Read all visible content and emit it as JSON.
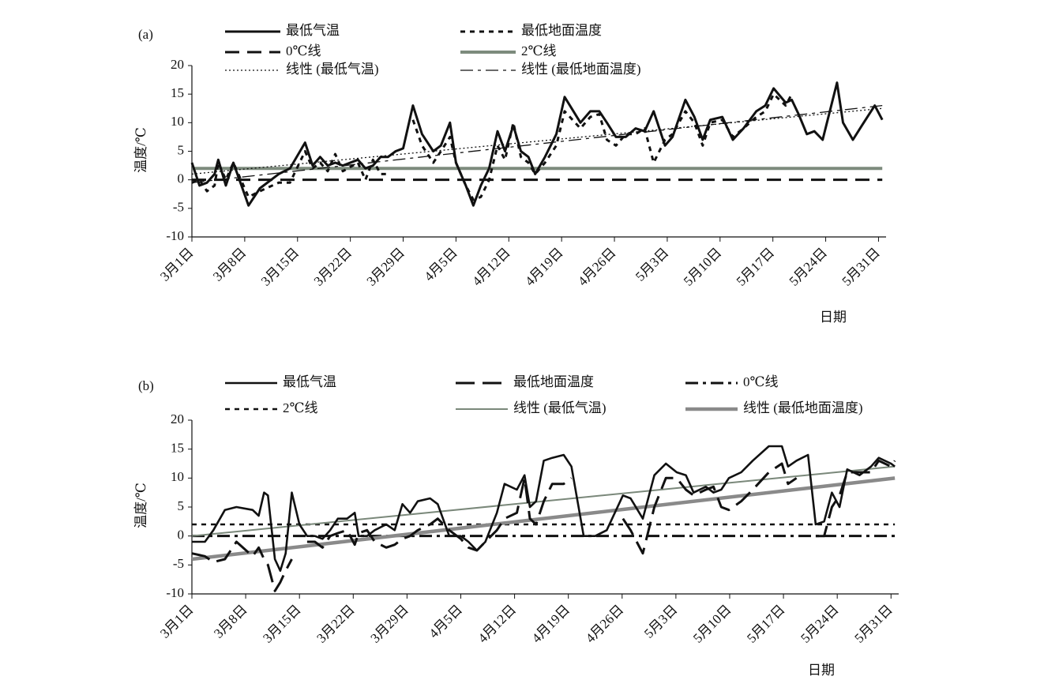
{
  "chart_data": [
    {
      "type": "line",
      "label": "(a)",
      "ylabel": "温度/℃",
      "xlabel": "日期",
      "xlim": [
        0,
        92
      ],
      "ylim": [
        -10,
        20
      ],
      "yticks": [
        -10,
        -5,
        0,
        5,
        10,
        15,
        20
      ],
      "xticks": [
        {
          "value": 0,
          "label": "3月1日"
        },
        {
          "value": 7,
          "label": "3月8日"
        },
        {
          "value": 14,
          "label": "3月15日"
        },
        {
          "value": 21,
          "label": "3月22日"
        },
        {
          "value": 28,
          "label": "3月29日"
        },
        {
          "value": 35,
          "label": "4月5日"
        },
        {
          "value": 42,
          "label": "4月12日"
        },
        {
          "value": 49,
          "label": "4月19日"
        },
        {
          "value": 56,
          "label": "4月26日"
        },
        {
          "value": 63,
          "label": "5月3日"
        },
        {
          "value": 70,
          "label": "5月10日"
        },
        {
          "value": 77,
          "label": "5月17日"
        },
        {
          "value": 84,
          "label": "5月24日"
        },
        {
          "value": 91,
          "label": "5月31日"
        }
      ],
      "x": [
        0,
        1,
        2,
        3,
        3.5,
        4.5,
        5.5,
        7.5,
        9,
        11.5,
        13,
        15,
        16,
        17,
        18,
        19,
        20,
        22,
        23,
        24,
        25,
        26,
        27,
        28,
        29.3,
        30.5,
        32,
        33,
        34.2,
        35,
        36.3,
        37.3,
        38.3,
        39.4,
        40.5,
        41.5,
        42.6,
        43.6,
        44.6,
        45.5,
        46.8,
        48.3,
        49.4,
        51.5,
        52.8,
        54,
        55,
        56.2,
        57.5,
        58.8,
        60,
        61.2,
        62.7,
        63.7,
        65.4,
        66.6,
        67.7,
        68.7,
        70.3,
        71.7,
        73.1,
        74.8,
        76,
        77.1,
        78.7,
        79.5,
        80.4,
        81.5,
        82.5,
        83.6,
        85.5,
        86.3,
        87.6,
        88.8,
        90.5,
        91.5
      ],
      "series": [
        {
          "name": "最低气温",
          "color": "#111111",
          "style": "solid",
          "width": 3,
          "values": [
            3,
            -1,
            -0.5,
            1,
            3.5,
            -1,
            3,
            -4.5,
            -1.5,
            1,
            2,
            6.5,
            2.5,
            4,
            2.5,
            3,
            2.5,
            3.5,
            2,
            2.5,
            4,
            4,
            5,
            5.5,
            13,
            8,
            5,
            6,
            10,
            3,
            -1,
            -4.5,
            -1,
            2,
            8.5,
            5,
            9.5,
            5,
            4,
            1,
            4,
            8,
            14.5,
            10,
            12,
            12,
            10,
            7.5,
            7.5,
            9,
            8.5,
            12,
            6,
            7.5,
            14,
            11,
            7,
            10.5,
            11,
            7,
            9,
            12,
            13,
            16,
            13.5,
            14,
            11.5,
            8,
            8.5,
            7,
            17,
            10,
            7,
            9.5,
            13,
            10.5
          ]
        },
        {
          "name": "最低地面温度",
          "color": "#111111",
          "style": "squaredot",
          "width": 3,
          "values": [
            -0.5,
            0,
            -2,
            -1,
            3,
            0,
            3,
            -3,
            -2,
            -0.5,
            -0.5,
            5,
            2,
            3,
            1.5,
            4.5,
            1.5,
            3,
            0,
            3.5,
            1,
            1,
            null,
            null,
            10.5,
            6,
            3,
            5,
            7.5,
            3,
            -1,
            -3.5,
            -3,
            0,
            6,
            3.5,
            10,
            4,
            3,
            1,
            3,
            6,
            12,
            9,
            11,
            11.5,
            7,
            6,
            8,
            8,
            9,
            3,
            7,
            8,
            12,
            10,
            6,
            10,
            10.5,
            7.5,
            9,
            11,
            12,
            15,
            13,
            15,
            null,
            null,
            null,
            null,
            null,
            null,
            null,
            null,
            null,
            null
          ]
        }
      ],
      "hlines": [
        {
          "name": "0℃线",
          "value": 0,
          "color": "#111111",
          "style": "dashed",
          "width": 3
        },
        {
          "name": "2℃线",
          "value": 2,
          "color": "#7d8b7d",
          "style": "solid",
          "width": 4
        }
      ],
      "trendlines": [
        {
          "name": "线性 (最低气温)",
          "color": "#111111",
          "style": "finedot",
          "width": 1.3,
          "x": [
            0,
            91.5
          ],
          "values": [
            1,
            12.5
          ]
        },
        {
          "name": "线性 (最低地面温度)",
          "color": "#111111",
          "style": "dashdot",
          "width": 1.3,
          "x": [
            0,
            91.5
          ],
          "values": [
            -0.5,
            13
          ]
        }
      ]
    },
    {
      "type": "line",
      "label": "(b)",
      "ylabel": "温度/℃",
      "xlabel": "日期",
      "xlim": [
        0,
        92
      ],
      "ylim": [
        -10,
        20
      ],
      "yticks": [
        -10,
        -5,
        0,
        5,
        10,
        15,
        20
      ],
      "xticks": [
        {
          "value": 0,
          "label": "3月1日"
        },
        {
          "value": 7,
          "label": "3月8日"
        },
        {
          "value": 14,
          "label": "3月15日"
        },
        {
          "value": 21,
          "label": "3月22日"
        },
        {
          "value": 28,
          "label": "3月29日"
        },
        {
          "value": 35,
          "label": "4月5日"
        },
        {
          "value": 42,
          "label": "4月12日"
        },
        {
          "value": 49,
          "label": "4月19日"
        },
        {
          "value": 56,
          "label": "4月26日"
        },
        {
          "value": 63,
          "label": "5月3日"
        },
        {
          "value": 70,
          "label": "5月10日"
        },
        {
          "value": 77,
          "label": "5月17日"
        },
        {
          "value": 84,
          "label": "5月24日"
        },
        {
          "value": 91,
          "label": "5月31日"
        }
      ],
      "x": [
        0,
        1.7,
        2.8,
        4.3,
        5.8,
        7.9,
        8.7,
        9.4,
        9.9,
        10.8,
        11.5,
        12.2,
        13,
        14,
        15,
        16,
        17,
        18,
        19,
        20.2,
        21.2,
        21.7,
        22.8,
        23.8,
        25.3,
        26.4,
        27.4,
        28.4,
        29.4,
        31,
        32,
        33.5,
        35,
        36,
        37.1,
        38.2,
        39.7,
        40.7,
        42.3,
        43.3,
        44,
        44.8,
        45.8,
        46.9,
        48.4,
        49.4,
        51,
        52.5,
        54,
        56.1,
        57.1,
        58.7,
        60.2,
        61.7,
        63.1,
        64.3,
        65.3,
        66.9,
        67.9,
        68.9,
        69.9,
        71.5,
        73,
        75.1,
        76.8,
        77.6,
        78.7,
        80.2,
        81.2,
        82.3,
        83.3,
        84.3,
        85.3,
        86.9,
        88.4,
        89.4,
        91,
        91.5
      ],
      "series": [
        {
          "name": "最低气温",
          "color": "#111111",
          "style": "solid",
          "width": 2.6,
          "values": [
            -1,
            -1,
            1,
            4.5,
            5,
            4.5,
            3.5,
            7.5,
            7,
            -4,
            -6,
            -3,
            7.5,
            2,
            0,
            0,
            -0.5,
            1,
            3,
            3,
            4,
            0,
            0,
            1,
            2,
            1,
            5.5,
            4,
            6,
            6.5,
            5.5,
            0,
            0,
            -1,
            -2.5,
            -1,
            4,
            9,
            8,
            10.5,
            5,
            6,
            13,
            13.5,
            14,
            12,
            0,
            0,
            1,
            7,
            6.5,
            3,
            10.5,
            12.5,
            11,
            10.5,
            7.5,
            8.5,
            7.5,
            8,
            10,
            11,
            13,
            15.5,
            15.5,
            12,
            13,
            14,
            2,
            2.5,
            7.5,
            5,
            11.5,
            10.5,
            12,
            13.5,
            12.5,
            12
          ]
        },
        {
          "name": "最低地面温度",
          "color": "#111111",
          "style": "longdash",
          "width": 3,
          "values": [
            -3,
            -3.5,
            -4.5,
            -4,
            -1,
            -3.5,
            -2,
            -4,
            -5,
            -9.5,
            -8,
            -6,
            -4,
            null,
            -1,
            -1,
            -2,
            0,
            0.5,
            1,
            -1.5,
            0.5,
            1,
            -1,
            -2,
            -1.5,
            -0.5,
            0,
            1,
            2,
            3,
            1,
            -0.5,
            -2,
            -2.5,
            -1,
            1,
            3,
            4,
            10,
            3,
            2,
            6,
            9,
            9,
            10,
            null,
            null,
            null,
            3,
            1,
            -3,
            5,
            10,
            10,
            8,
            7,
            8,
            8.5,
            5,
            4.5,
            6,
            8,
            11,
            12.5,
            9,
            10,
            null,
            0,
            0,
            5,
            7,
            11,
            11,
            11,
            13,
            12,
            13
          ]
        }
      ],
      "hlines": [
        {
          "name": "0℃线",
          "value": 0,
          "color": "#111111",
          "style": "dashdot",
          "width": 3
        },
        {
          "name": "2℃线",
          "value": 2,
          "color": "#111111",
          "style": "squaredot",
          "width": 2.6
        }
      ],
      "trendlines": [
        {
          "name": "线性 (最低气温)",
          "color": "#7a887a",
          "style": "solid",
          "width": 2,
          "x": [
            0,
            91.5
          ],
          "values": [
            0,
            12
          ]
        },
        {
          "name": "线性 (最低地面温度)",
          "color": "#8a8a8a",
          "style": "solid",
          "width": 4.5,
          "x": [
            0,
            91.5
          ],
          "values": [
            -4,
            10
          ]
        }
      ]
    }
  ]
}
